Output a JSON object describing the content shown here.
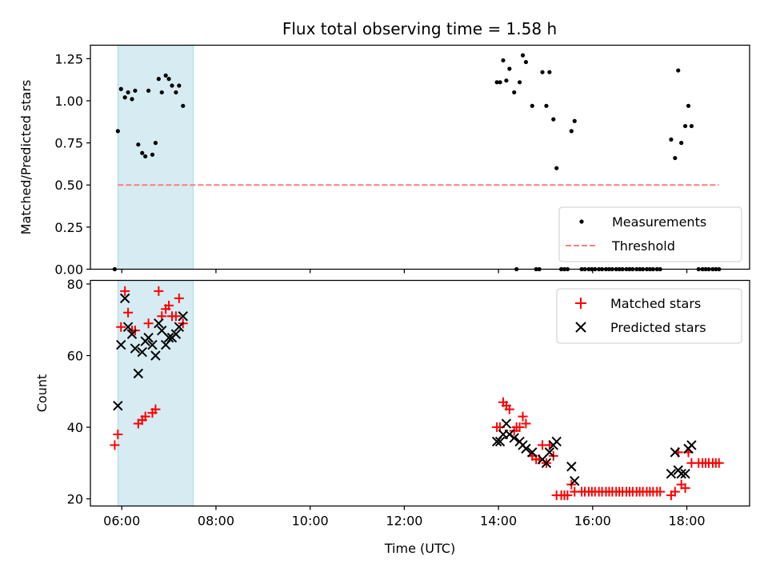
{
  "chart_data": [
    {
      "type": "scatter",
      "title": "Flux total observing time = 1.58 h",
      "ylabel": "Matched/Predicted stars",
      "xlabel": "",
      "xlim": [
        "05:20",
        "19:20"
      ],
      "ylim": [
        0,
        1.33
      ],
      "x_ticks": [
        "06:00",
        "08:00",
        "10:00",
        "12:00",
        "14:00",
        "16:00",
        "18:00"
      ],
      "y_ticks": [
        "0.00",
        "0.25",
        "0.50",
        "0.75",
        "1.00",
        "1.25"
      ],
      "y_tick_values": [
        0,
        0.25,
        0.5,
        0.75,
        1.0,
        1.25
      ],
      "shaded_span": [
        "05:55",
        "07:31"
      ],
      "shaded_color": "#add8e6",
      "legend_position": "lower right",
      "series": [
        {
          "name": "Measurements",
          "marker": "dot",
          "color": "#000000",
          "points": [
            [
              "05:51",
              0.0
            ],
            [
              "05:55",
              0.82
            ],
            [
              "05:59",
              1.07
            ],
            [
              "06:04",
              1.02
            ],
            [
              "06:08",
              1.05
            ],
            [
              "06:13",
              1.01
            ],
            [
              "06:17",
              1.06
            ],
            [
              "06:21",
              0.74
            ],
            [
              "06:26",
              0.69
            ],
            [
              "06:30",
              0.67
            ],
            [
              "06:34",
              1.06
            ],
            [
              "06:39",
              0.68
            ],
            [
              "06:43",
              0.75
            ],
            [
              "06:47",
              1.13
            ],
            [
              "06:51",
              1.05
            ],
            [
              "06:56",
              1.15
            ],
            [
              "07:00",
              1.13
            ],
            [
              "07:04",
              1.09
            ],
            [
              "07:09",
              1.05
            ],
            [
              "07:13",
              1.09
            ],
            [
              "07:18",
              0.97
            ],
            [
              "13:58",
              1.11
            ],
            [
              "14:02",
              1.11
            ],
            [
              "14:06",
              1.24
            ],
            [
              "14:10",
              1.12
            ],
            [
              "14:14",
              1.19
            ],
            [
              "14:20",
              1.05
            ],
            [
              "14:23",
              0.0
            ],
            [
              "14:27",
              1.11
            ],
            [
              "14:31",
              1.27
            ],
            [
              "14:35",
              1.23
            ],
            [
              "14:43",
              0.97
            ],
            [
              "14:48",
              0.0
            ],
            [
              "14:52",
              0.0
            ],
            [
              "14:56",
              1.17
            ],
            [
              "15:01",
              0.97
            ],
            [
              "15:05",
              1.17
            ],
            [
              "15:10",
              0.89
            ],
            [
              "15:14",
              0.6
            ],
            [
              "15:20",
              0.0
            ],
            [
              "15:24",
              0.0
            ],
            [
              "15:28",
              0.0
            ],
            [
              "15:33",
              0.82
            ],
            [
              "15:37",
              0.88
            ],
            [
              "15:46",
              0.0
            ],
            [
              "15:50",
              0.0
            ],
            [
              "15:55",
              0.0
            ],
            [
              "15:59",
              0.0
            ],
            [
              "16:03",
              0.0
            ],
            [
              "16:08",
              0.0
            ],
            [
              "16:12",
              0.0
            ],
            [
              "16:17",
              0.0
            ],
            [
              "16:21",
              0.0
            ],
            [
              "16:25",
              0.0
            ],
            [
              "16:30",
              0.0
            ],
            [
              "16:34",
              0.0
            ],
            [
              "16:38",
              0.0
            ],
            [
              "16:43",
              0.0
            ],
            [
              "16:47",
              0.0
            ],
            [
              "16:51",
              0.0
            ],
            [
              "16:56",
              0.0
            ],
            [
              "17:00",
              0.0
            ],
            [
              "17:04",
              0.0
            ],
            [
              "17:09",
              0.0
            ],
            [
              "17:13",
              0.0
            ],
            [
              "17:17",
              0.0
            ],
            [
              "17:22",
              0.0
            ],
            [
              "17:26",
              0.0
            ],
            [
              "17:40",
              0.77
            ],
            [
              "17:45",
              0.66
            ],
            [
              "17:49",
              1.18
            ],
            [
              "17:53",
              0.75
            ],
            [
              "17:58",
              0.85
            ],
            [
              "18:02",
              0.97
            ],
            [
              "18:06",
              0.85
            ],
            [
              "18:15",
              0.0
            ],
            [
              "18:20",
              0.0
            ],
            [
              "18:24",
              0.0
            ],
            [
              "18:28",
              0.0
            ],
            [
              "18:33",
              0.0
            ],
            [
              "18:37",
              0.0
            ],
            [
              "18:41",
              0.0
            ]
          ]
        },
        {
          "name": "Threshold",
          "marker": "dashed-line",
          "color": "#ff7f7f",
          "points": [
            [
              "05:55",
              0.5
            ],
            [
              "18:41",
              0.5
            ]
          ]
        }
      ]
    },
    {
      "type": "scatter",
      "title": "",
      "ylabel": "Count",
      "xlabel": "Time (UTC)",
      "xlim": [
        "05:20",
        "19:20"
      ],
      "ylim": [
        18,
        81
      ],
      "x_ticks": [
        "06:00",
        "08:00",
        "10:00",
        "12:00",
        "14:00",
        "16:00",
        "18:00"
      ],
      "y_ticks": [
        "20",
        "40",
        "60",
        "80"
      ],
      "y_tick_values": [
        20,
        40,
        60,
        80
      ],
      "shaded_span": [
        "05:55",
        "07:31"
      ],
      "shaded_color": "#add8e6",
      "legend_position": "upper right",
      "series": [
        {
          "name": "Matched stars",
          "marker": "plus",
          "color": "#ff0000",
          "points": [
            [
              "05:51",
              35
            ],
            [
              "05:55",
              38
            ],
            [
              "05:59",
              68
            ],
            [
              "06:04",
              78
            ],
            [
              "06:08",
              72
            ],
            [
              "06:13",
              67
            ],
            [
              "06:17",
              67
            ],
            [
              "06:21",
              41
            ],
            [
              "06:26",
              42
            ],
            [
              "06:30",
              43
            ],
            [
              "06:34",
              69
            ],
            [
              "06:39",
              44
            ],
            [
              "06:43",
              45
            ],
            [
              "06:47",
              78
            ],
            [
              "06:51",
              71
            ],
            [
              "06:56",
              73
            ],
            [
              "07:00",
              74
            ],
            [
              "07:04",
              71
            ],
            [
              "07:09",
              71
            ],
            [
              "07:13",
              76
            ],
            [
              "07:18",
              69
            ],
            [
              "13:58",
              40
            ],
            [
              "14:02",
              40
            ],
            [
              "14:06",
              47
            ],
            [
              "14:10",
              46
            ],
            [
              "14:14",
              45
            ],
            [
              "14:20",
              39
            ],
            [
              "14:23",
              40
            ],
            [
              "14:27",
              40
            ],
            [
              "14:31",
              43
            ],
            [
              "14:35",
              41
            ],
            [
              "14:43",
              32
            ],
            [
              "14:48",
              31
            ],
            [
              "14:52",
              31
            ],
            [
              "14:56",
              35
            ],
            [
              "15:01",
              30
            ],
            [
              "15:05",
              35
            ],
            [
              "15:10",
              32
            ],
            [
              "15:14",
              21
            ],
            [
              "15:20",
              21
            ],
            [
              "15:24",
              21
            ],
            [
              "15:28",
              21
            ],
            [
              "15:33",
              24
            ],
            [
              "15:37",
              22
            ],
            [
              "15:46",
              22
            ],
            [
              "15:50",
              22
            ],
            [
              "15:55",
              22
            ],
            [
              "15:59",
              22
            ],
            [
              "16:03",
              22
            ],
            [
              "16:08",
              22
            ],
            [
              "16:12",
              22
            ],
            [
              "16:17",
              22
            ],
            [
              "16:21",
              22
            ],
            [
              "16:25",
              22
            ],
            [
              "16:30",
              22
            ],
            [
              "16:34",
              22
            ],
            [
              "16:38",
              22
            ],
            [
              "16:43",
              22
            ],
            [
              "16:47",
              22
            ],
            [
              "16:51",
              22
            ],
            [
              "16:56",
              22
            ],
            [
              "17:00",
              22
            ],
            [
              "17:04",
              22
            ],
            [
              "17:09",
              22
            ],
            [
              "17:13",
              22
            ],
            [
              "17:17",
              22
            ],
            [
              "17:22",
              22
            ],
            [
              "17:26",
              22
            ],
            [
              "17:40",
              21
            ],
            [
              "17:45",
              22
            ],
            [
              "17:49",
              33
            ],
            [
              "17:53",
              24
            ],
            [
              "17:58",
              23
            ],
            [
              "18:02",
              33
            ],
            [
              "18:06",
              30
            ],
            [
              "18:15",
              30
            ],
            [
              "18:20",
              30
            ],
            [
              "18:24",
              30
            ],
            [
              "18:28",
              30
            ],
            [
              "18:33",
              30
            ],
            [
              "18:37",
              30
            ],
            [
              "18:41",
              30
            ]
          ]
        },
        {
          "name": "Predicted stars",
          "marker": "x",
          "color": "#000000",
          "points": [
            [
              "05:55",
              46
            ],
            [
              "05:59",
              63
            ],
            [
              "06:04",
              76
            ],
            [
              "06:08",
              68
            ],
            [
              "06:13",
              66
            ],
            [
              "06:17",
              62
            ],
            [
              "06:21",
              55
            ],
            [
              "06:26",
              61
            ],
            [
              "06:30",
              64
            ],
            [
              "06:34",
              65
            ],
            [
              "06:39",
              63
            ],
            [
              "06:43",
              60
            ],
            [
              "06:47",
              69
            ],
            [
              "06:51",
              67
            ],
            [
              "06:56",
              63
            ],
            [
              "07:00",
              65
            ],
            [
              "07:04",
              65
            ],
            [
              "07:09",
              66
            ],
            [
              "07:13",
              68
            ],
            [
              "07:18",
              71
            ],
            [
              "13:58",
              36
            ],
            [
              "14:02",
              36
            ],
            [
              "14:06",
              38
            ],
            [
              "14:10",
              41
            ],
            [
              "14:14",
              38
            ],
            [
              "14:20",
              37
            ],
            [
              "14:27",
              36
            ],
            [
              "14:31",
              35
            ],
            [
              "14:35",
              34
            ],
            [
              "14:43",
              33
            ],
            [
              "14:56",
              31
            ],
            [
              "15:01",
              30
            ],
            [
              "15:05",
              33
            ],
            [
              "15:10",
              35
            ],
            [
              "15:14",
              36
            ],
            [
              "15:33",
              29
            ],
            [
              "15:37",
              25
            ],
            [
              "17:40",
              27
            ],
            [
              "17:45",
              33
            ],
            [
              "17:49",
              28
            ],
            [
              "17:53",
              27
            ],
            [
              "17:58",
              27
            ],
            [
              "18:02",
              34
            ],
            [
              "18:06",
              35
            ]
          ]
        }
      ]
    }
  ]
}
